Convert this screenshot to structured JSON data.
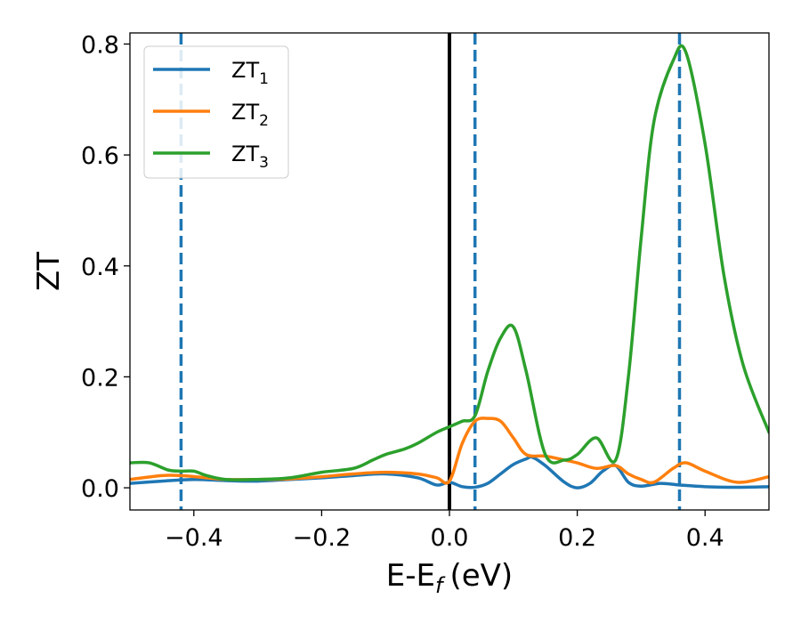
{
  "chart_data": {
    "type": "line",
    "xlabel": "E-E",
    "xlabel_sub": "f",
    "xlabel_unit": "(eV)",
    "ylabel": "ZT",
    "xlim": [
      -0.5,
      0.5
    ],
    "ylim": [
      -0.04,
      0.82
    ],
    "xticks": [
      -0.4,
      -0.2,
      0.0,
      0.2,
      0.4
    ],
    "xtick_labels": [
      "−0.4",
      "−0.2",
      "0.0",
      "0.2",
      "0.4"
    ],
    "yticks": [
      0.0,
      0.2,
      0.4,
      0.6,
      0.8
    ],
    "ytick_labels": [
      "0.0",
      "0.2",
      "0.4",
      "0.6",
      "0.8"
    ],
    "legend_position": "top-left",
    "grid": false,
    "vertical_lines": [
      {
        "x": 0.0,
        "style": "solid",
        "color": "#000000"
      },
      {
        "x": -0.42,
        "style": "dashed",
        "color": "#1f77b4"
      },
      {
        "x": 0.04,
        "style": "dashed",
        "color": "#1f77b4"
      },
      {
        "x": 0.36,
        "style": "dashed",
        "color": "#1f77b4"
      }
    ],
    "series": [
      {
        "name": "ZT",
        "name_sub": "1",
        "color": "#1f77b4",
        "x": [
          -0.5,
          -0.45,
          -0.4,
          -0.35,
          -0.3,
          -0.25,
          -0.2,
          -0.15,
          -0.1,
          -0.05,
          -0.02,
          0.0,
          0.02,
          0.04,
          0.06,
          0.08,
          0.1,
          0.12,
          0.13,
          0.15,
          0.18,
          0.2,
          0.22,
          0.24,
          0.26,
          0.28,
          0.3,
          0.33,
          0.36,
          0.4,
          0.45,
          0.5
        ],
        "values": [
          0.008,
          0.012,
          0.015,
          0.013,
          0.012,
          0.015,
          0.018,
          0.022,
          0.025,
          0.018,
          0.005,
          0.01,
          0.002,
          0.001,
          0.008,
          0.025,
          0.042,
          0.052,
          0.055,
          0.04,
          0.01,
          0.0,
          0.008,
          0.03,
          0.04,
          0.01,
          0.003,
          0.008,
          0.005,
          0.002,
          0.001,
          0.002
        ]
      },
      {
        "name": "ZT",
        "name_sub": "2",
        "color": "#ff7f0e",
        "x": [
          -0.5,
          -0.45,
          -0.42,
          -0.38,
          -0.35,
          -0.3,
          -0.25,
          -0.2,
          -0.15,
          -0.1,
          -0.05,
          -0.02,
          0.0,
          0.02,
          0.04,
          0.06,
          0.08,
          0.1,
          0.12,
          0.15,
          0.18,
          0.2,
          0.23,
          0.26,
          0.28,
          0.3,
          0.32,
          0.35,
          0.37,
          0.4,
          0.45,
          0.5
        ],
        "values": [
          0.015,
          0.022,
          0.022,
          0.018,
          0.015,
          0.015,
          0.016,
          0.02,
          0.025,
          0.028,
          0.025,
          0.018,
          0.012,
          0.08,
          0.12,
          0.125,
          0.12,
          0.09,
          0.06,
          0.057,
          0.05,
          0.045,
          0.035,
          0.04,
          0.025,
          0.015,
          0.01,
          0.035,
          0.045,
          0.03,
          0.01,
          0.02
        ]
      },
      {
        "name": "ZT",
        "name_sub": "3",
        "color": "#2ca02c",
        "x": [
          -0.5,
          -0.47,
          -0.44,
          -0.42,
          -0.4,
          -0.38,
          -0.35,
          -0.3,
          -0.25,
          -0.2,
          -0.15,
          -0.12,
          -0.1,
          -0.07,
          -0.05,
          -0.02,
          0.0,
          0.02,
          0.04,
          0.06,
          0.08,
          0.1,
          0.12,
          0.15,
          0.18,
          0.2,
          0.23,
          0.26,
          0.28,
          0.3,
          0.32,
          0.35,
          0.37,
          0.4,
          0.43,
          0.46,
          0.5
        ],
        "values": [
          0.045,
          0.045,
          0.032,
          0.03,
          0.03,
          0.022,
          0.015,
          0.015,
          0.018,
          0.028,
          0.035,
          0.05,
          0.06,
          0.07,
          0.08,
          0.1,
          0.11,
          0.12,
          0.13,
          0.21,
          0.27,
          0.29,
          0.21,
          0.06,
          0.05,
          0.06,
          0.09,
          0.05,
          0.2,
          0.45,
          0.66,
          0.77,
          0.785,
          0.62,
          0.38,
          0.22,
          0.1
        ]
      }
    ]
  }
}
